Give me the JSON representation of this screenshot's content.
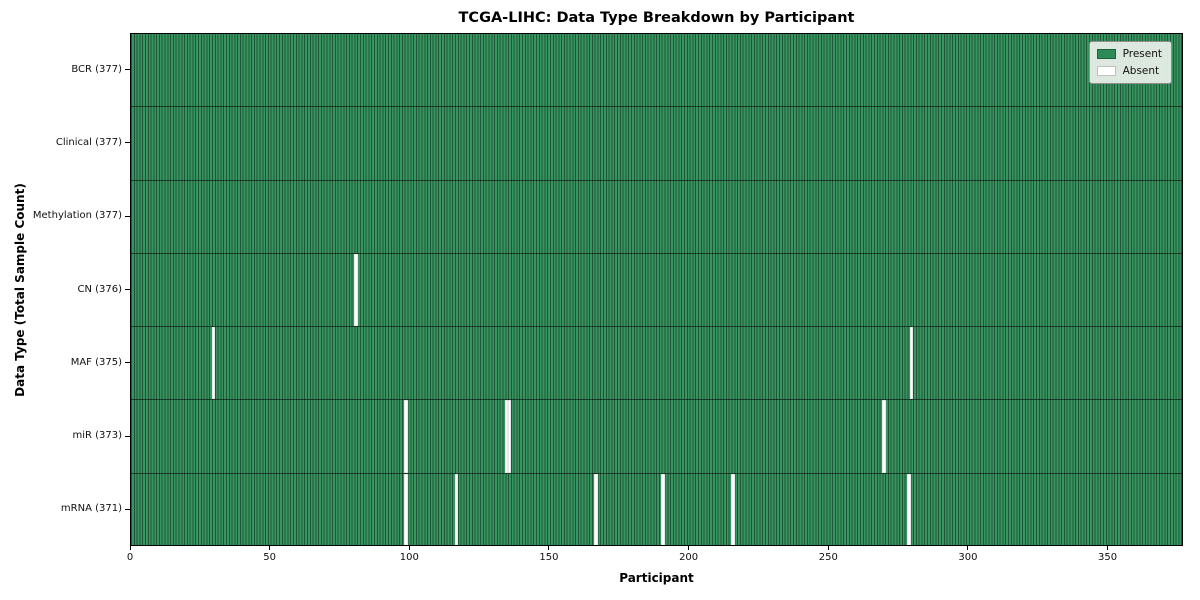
{
  "chart_data": {
    "type": "heatmap",
    "title": "TCGA-LIHC: Data Type Breakdown by Participant",
    "xlabel": "Participant",
    "ylabel": "Data Type (Total Sample Count)",
    "x_ticks": [
      0,
      50,
      100,
      150,
      200,
      250,
      300,
      350
    ],
    "x_range": [
      0,
      377
    ],
    "n_participants": 377,
    "grid": "cell-borders",
    "rows": [
      {
        "label": "BCR (377)",
        "data_type": "BCR",
        "total_samples": 377,
        "absent_participants": []
      },
      {
        "label": "Clinical (377)",
        "data_type": "Clinical",
        "total_samples": 377,
        "absent_participants": []
      },
      {
        "label": "Methylation (377)",
        "data_type": "Methylation",
        "total_samples": 377,
        "absent_participants": []
      },
      {
        "label": "CN (376)",
        "data_type": "CN",
        "total_samples": 376,
        "absent_participants": [
          80
        ]
      },
      {
        "label": "MAF (375)",
        "data_type": "MAF",
        "total_samples": 375,
        "absent_participants": [
          29,
          279
        ]
      },
      {
        "label": "miR (373)",
        "data_type": "miR",
        "total_samples": 373,
        "absent_participants": [
          98,
          134,
          135,
          269
        ]
      },
      {
        "label": "mRNA (371)",
        "data_type": "mRNA",
        "total_samples": 371,
        "absent_participants": [
          98,
          116,
          166,
          190,
          215,
          278
        ]
      }
    ],
    "legend": {
      "position": "upper-right",
      "entries": [
        {
          "label": "Present",
          "color": "#2e8b57"
        },
        {
          "label": "Absent",
          "color": "#ffffff"
        }
      ]
    },
    "colors": {
      "present": "#2e8b57",
      "absent": "#ffffff",
      "cell_border": "#1b4d33",
      "row_separator": "#14402a",
      "plot_border": "#000000"
    }
  }
}
